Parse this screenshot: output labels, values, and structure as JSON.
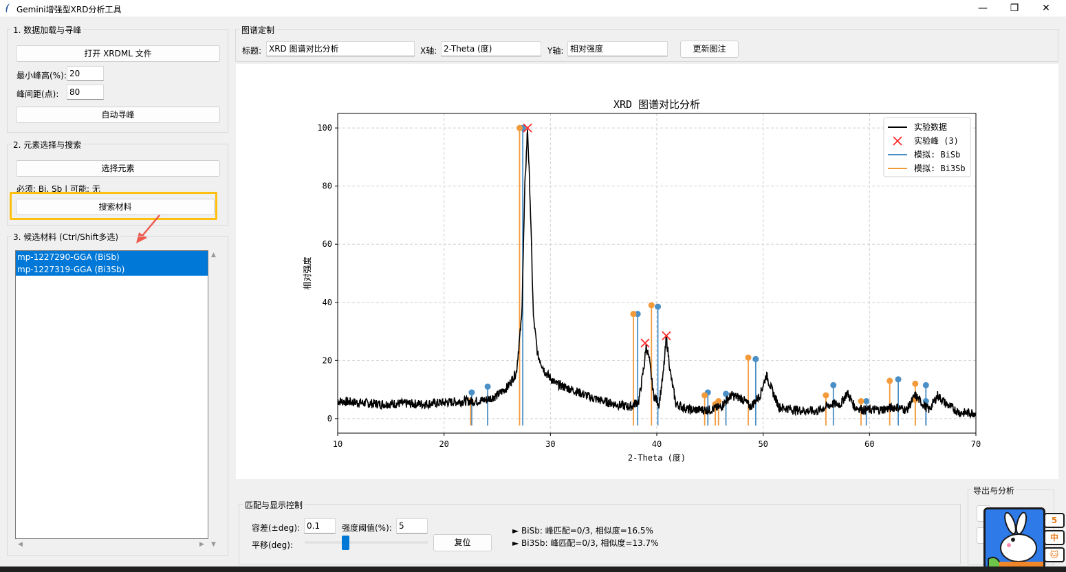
{
  "window": {
    "title": "Gemini增强型XRD分析工具",
    "controls": {
      "minimize": "—",
      "maximize": "❐",
      "close": "✕"
    }
  },
  "load_section": {
    "title": "1. 数据加载与寻峰",
    "open_button": "打开 XRDML 文件",
    "min_height_label": "最小峰高(%):",
    "min_height_value": "20",
    "peak_distance_label": "峰间距(点):",
    "peak_distance_value": "80",
    "auto_peak_button": "自动寻峰"
  },
  "element_section": {
    "title": "2. 元素选择与搜索",
    "select_button": "选择元素",
    "status": "必须: Bi, Sb | 可能: 无",
    "search_button": "搜索材料"
  },
  "candidates_section": {
    "title": "3. 候选材料 (Ctrl/Shift多选)",
    "items": [
      "mp-1227290-GGA (BiSb)",
      "mp-1227319-GGA (Bi3Sb)"
    ]
  },
  "customize": {
    "title": "图谱定制",
    "title_label": "标题:",
    "title_value": "XRD 图谱对比分析",
    "x_label": "X轴:",
    "x_value": "2-Theta (度)",
    "y_label": "Y轴:",
    "y_value": "相对强度",
    "update_button": "更新图注"
  },
  "match": {
    "title": "匹配与显示控制",
    "tolerance_label": "容差(±deg):",
    "tolerance_value": "0.1",
    "threshold_label": "强度阈值(%):",
    "threshold_value": "5",
    "shift_label": "平移(deg):",
    "shift_position": 0.33,
    "reset_button": "复位",
    "results": [
      "► BiSb: 峰匹配=0/3, 相似度=16.5%",
      "► Bi3Sb: 峰匹配=0/3, 相似度=13.7%"
    ]
  },
  "export": {
    "title": "导出与分析"
  },
  "side_badges": [
    "5",
    "中",
    "🐱"
  ],
  "colors": {
    "experimental": "#000000",
    "peaks": "#ff2a2a",
    "bisb": "#4a8fc6",
    "bi3sb": "#f39a3b",
    "selection": "#0078d7",
    "highlight": "#ffc00f"
  },
  "chart_data": {
    "type": "line",
    "title": "XRD 图谱对比分析",
    "xlabel": "2-Theta (度)",
    "ylabel": "相对强度",
    "xlim": [
      10,
      70
    ],
    "ylim": [
      -5,
      105
    ],
    "xticks": [
      10,
      20,
      30,
      40,
      50,
      60,
      70
    ],
    "yticks": [
      0,
      20,
      40,
      60,
      80,
      100
    ],
    "grid": true,
    "legend_position": "top-right",
    "legend": [
      "实验数据",
      "实验峰 (3)",
      "模拟: BiSb",
      "模拟: Bi3Sb"
    ],
    "experimental": [
      [
        10,
        6
      ],
      [
        12,
        5.5
      ],
      [
        14,
        5
      ],
      [
        16,
        5.2
      ],
      [
        18,
        5
      ],
      [
        20,
        5.5
      ],
      [
        22,
        6
      ],
      [
        23,
        6
      ],
      [
        24,
        6.5
      ],
      [
        25,
        8
      ],
      [
        26,
        11
      ],
      [
        26.8,
        16
      ],
      [
        27.3,
        35
      ],
      [
        27.6,
        80
      ],
      [
        27.85,
        100
      ],
      [
        28.1,
        75
      ],
      [
        28.4,
        35
      ],
      [
        28.8,
        22
      ],
      [
        29.5,
        16
      ],
      [
        30.5,
        12
      ],
      [
        32,
        10
      ],
      [
        34,
        7
      ],
      [
        36,
        5
      ],
      [
        37.5,
        4
      ],
      [
        38.3,
        6
      ],
      [
        38.8,
        18
      ],
      [
        39.0,
        25
      ],
      [
        39.3,
        20
      ],
      [
        39.7,
        8
      ],
      [
        40.2,
        5
      ],
      [
        40.6,
        15
      ],
      [
        40.9,
        28
      ],
      [
        41.3,
        15
      ],
      [
        41.8,
        5
      ],
      [
        43,
        3
      ],
      [
        45,
        3
      ],
      [
        46,
        4
      ],
      [
        47,
        8
      ],
      [
        48,
        7
      ],
      [
        48.8,
        4
      ],
      [
        49.7,
        8
      ],
      [
        50.3,
        15
      ],
      [
        50.8,
        10
      ],
      [
        51.5,
        4
      ],
      [
        53,
        3
      ],
      [
        55,
        2.5
      ],
      [
        56.5,
        5
      ],
      [
        57.3,
        5
      ],
      [
        57.9,
        9
      ],
      [
        58.6,
        4
      ],
      [
        59.5,
        3
      ],
      [
        61,
        3
      ],
      [
        62.5,
        4
      ],
      [
        63.5,
        3
      ],
      [
        64.3,
        8
      ],
      [
        65,
        5
      ],
      [
        65.6,
        3
      ],
      [
        66.4,
        8
      ],
      [
        67.2,
        5
      ],
      [
        68.5,
        2
      ],
      [
        70,
        2
      ]
    ],
    "peaks": [
      [
        27.85,
        100
      ],
      [
        38.9,
        26
      ],
      [
        40.9,
        28.5
      ]
    ],
    "series": [
      {
        "name": "模拟: BiSb",
        "sticks": [
          [
            22.6,
            9
          ],
          [
            24.1,
            11
          ],
          [
            27.4,
            100
          ],
          [
            38.2,
            36
          ],
          [
            40.1,
            38.5
          ],
          [
            44.8,
            9
          ],
          [
            46.5,
            8.5
          ],
          [
            49.3,
            20.5
          ],
          [
            56.6,
            11.5
          ],
          [
            59.7,
            6
          ],
          [
            62.7,
            13.5
          ],
          [
            65.3,
            11.5
          ],
          [
            65.3,
            6
          ]
        ]
      },
      {
        "name": "模拟: Bi3Sb",
        "sticks": [
          [
            22.5,
            6
          ],
          [
            27.1,
            100
          ],
          [
            37.8,
            36
          ],
          [
            39.5,
            39
          ],
          [
            44.5,
            8
          ],
          [
            45.5,
            5
          ],
          [
            45.8,
            6
          ],
          [
            48.6,
            21
          ],
          [
            55.9,
            8
          ],
          [
            59.2,
            6
          ],
          [
            61.9,
            13
          ],
          [
            64.3,
            12
          ],
          [
            64.3,
            6.5
          ]
        ]
      }
    ]
  }
}
